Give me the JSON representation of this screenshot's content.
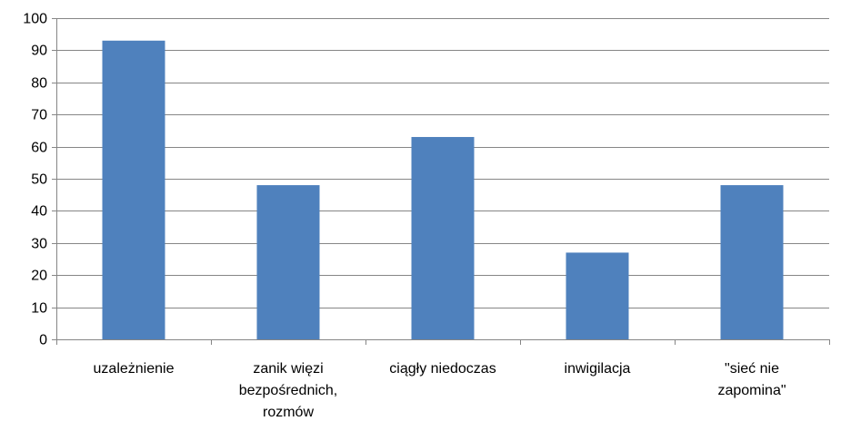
{
  "chart_data": {
    "type": "bar",
    "title": "",
    "xlabel": "",
    "ylabel": "",
    "categories": [
      [
        "uzależnienie"
      ],
      [
        "zanik więzi",
        "bezpośrednich,",
        "rozmów"
      ],
      [
        "ciągły niedoczas"
      ],
      [
        "inwigilacja"
      ],
      [
        "\"sieć nie",
        "zapomina\""
      ]
    ],
    "values": [
      93,
      48,
      63,
      27,
      48
    ],
    "ylim": [
      0,
      100
    ],
    "yticks": [
      0,
      10,
      20,
      30,
      40,
      50,
      60,
      70,
      80,
      90,
      100
    ],
    "grid": true,
    "legend": "none",
    "colors": {
      "bar": "#4F81BD",
      "grid": "#868686",
      "text": "#000000"
    }
  }
}
